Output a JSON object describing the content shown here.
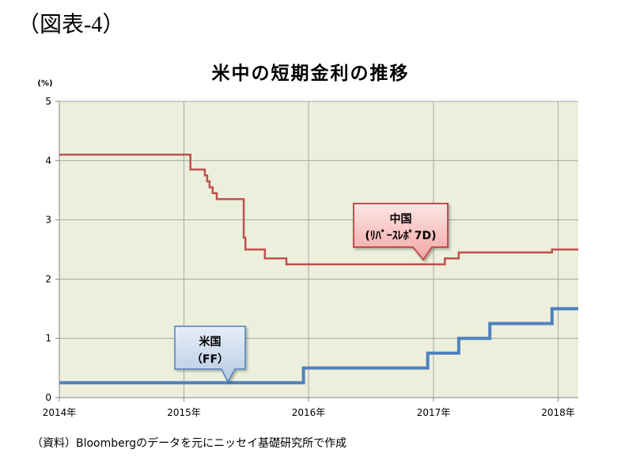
{
  "figure_label": "（図表-4）",
  "source_note": "（資料）Bloombergのデータを元にニッセイ基礎研究所で作成",
  "colors": {
    "plot_background": "#ecefdc",
    "gridline": "#a6a6a6",
    "axis": "#868686"
  },
  "chart_data": {
    "type": "line",
    "line_shape": "step",
    "title": "米中の短期金利の推移",
    "xlabel": "",
    "ylabel": "(%)",
    "xlim": [
      "2014-01-01",
      "2018-03-01"
    ],
    "ylim": [
      0,
      5
    ],
    "x_ticks": [
      {
        "date": "2014-01-01",
        "label": "2014年"
      },
      {
        "date": "2015-01-01",
        "label": "2015年"
      },
      {
        "date": "2016-01-01",
        "label": "2016年"
      },
      {
        "date": "2017-01-01",
        "label": "2017年"
      },
      {
        "date": "2018-01-01",
        "label": "2018年"
      }
    ],
    "y_ticks": [
      "0",
      "1",
      "2",
      "3",
      "4",
      "5"
    ],
    "grid": true,
    "legend": "none",
    "series": [
      {
        "name": "中国",
        "sub_label": "(ﾘﾊﾞｰｽﾚﾎﾟ7D)",
        "color": "#c0504d",
        "points": [
          [
            "2014-01-01",
            4.1
          ],
          [
            "2015-01-20",
            3.85
          ],
          [
            "2015-03-03",
            3.75
          ],
          [
            "2015-03-10",
            3.65
          ],
          [
            "2015-03-17",
            3.55
          ],
          [
            "2015-03-26",
            3.45
          ],
          [
            "2015-04-07",
            3.35
          ],
          [
            "2015-06-25",
            2.7
          ],
          [
            "2015-06-30",
            2.5
          ],
          [
            "2015-08-26",
            2.35
          ],
          [
            "2015-10-28",
            2.25
          ],
          [
            "2017-02-03",
            2.35
          ],
          [
            "2017-03-16",
            2.45
          ],
          [
            "2017-12-14",
            2.5
          ],
          [
            "2018-03-01",
            2.5
          ]
        ]
      },
      {
        "name": "米国",
        "sub_label": "（FF）",
        "color": "#4f81bd",
        "points": [
          [
            "2014-01-01",
            0.25
          ],
          [
            "2015-12-17",
            0.5
          ],
          [
            "2016-12-15",
            0.75
          ],
          [
            "2017-03-16",
            1.0
          ],
          [
            "2017-06-15",
            1.25
          ],
          [
            "2017-12-14",
            1.5
          ],
          [
            "2018-03-01",
            1.5
          ]
        ]
      }
    ]
  }
}
